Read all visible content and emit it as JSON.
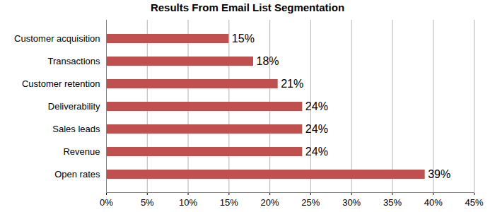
{
  "chart_data": {
    "type": "bar",
    "title": "Results From Email List Segmentation",
    "orientation": "horizontal",
    "categories": [
      "Customer acquisition",
      "Transactions",
      "Customer retention",
      "Deliverability",
      "Sales leads",
      "Revenue",
      "Open rates"
    ],
    "values": [
      15,
      18,
      21,
      24,
      24,
      24,
      39
    ],
    "value_labels": [
      "15%",
      "18%",
      "21%",
      "24%",
      "24%",
      "24%",
      "39%"
    ],
    "data_labels": true,
    "color": "#c0504d",
    "xlim": [
      0,
      45
    ],
    "xticks": [
      {
        "value": 0,
        "label": "0%"
      },
      {
        "value": 5,
        "label": "5%"
      },
      {
        "value": 10,
        "label": "10%"
      },
      {
        "value": 15,
        "label": "15%"
      },
      {
        "value": 20,
        "label": "20%"
      },
      {
        "value": 25,
        "label": "25%"
      },
      {
        "value": 30,
        "label": "30%"
      },
      {
        "value": 35,
        "label": "35%"
      },
      {
        "value": 40,
        "label": "40%"
      },
      {
        "value": 45,
        "label": "45%"
      }
    ],
    "grid": true
  }
}
